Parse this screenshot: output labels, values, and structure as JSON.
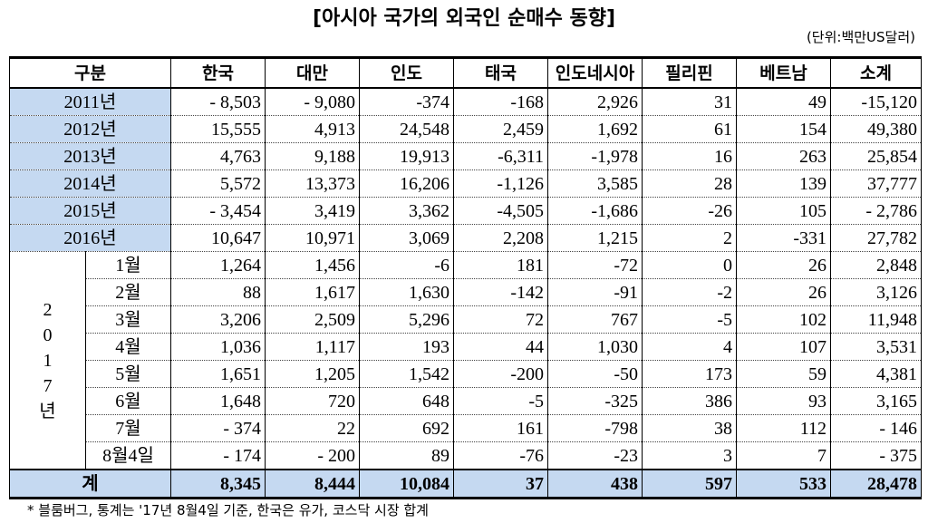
{
  "title": "[아시아 국가의 외국인 순매수 동향]",
  "unit": "(단위:백만US달러)",
  "headers": [
    "구분",
    "한국",
    "대만",
    "인도",
    "태국",
    "인도네시아",
    "필리핀",
    "베트남",
    "소계"
  ],
  "annual_rows": [
    {
      "label": "2011년",
      "values": [
        "- 8,503",
        "- 9,080",
        "-374",
        "-168",
        "2,926",
        "31",
        "49",
        "-15,120"
      ]
    },
    {
      "label": "2012년",
      "values": [
        "15,555",
        "4,913",
        "24,548",
        "2,459",
        "1,692",
        "61",
        "154",
        "49,380"
      ]
    },
    {
      "label": "2013년",
      "values": [
        "4,763",
        "9,188",
        "19,913",
        "-6,311",
        "-1,978",
        "16",
        "263",
        "25,854"
      ]
    },
    {
      "label": "2014년",
      "values": [
        "5,572",
        "13,373",
        "16,206",
        "-1,126",
        "3,585",
        "28",
        "139",
        "37,777"
      ]
    },
    {
      "label": "2015년",
      "values": [
        "- 3,454",
        "3,419",
        "3,362",
        "-4,505",
        "-1,686",
        "-26",
        "105",
        "- 2,786"
      ]
    },
    {
      "label": "2016년",
      "values": [
        "10,647",
        "10,971",
        "3,069",
        "2,208",
        "1,215",
        "2",
        "-331",
        "27,782"
      ]
    }
  ],
  "year_2017_chars": [
    "2",
    "0",
    "1",
    "7",
    "년"
  ],
  "monthly_rows": [
    {
      "label": "1월",
      "values": [
        "1,264",
        "1,456",
        "-6",
        "181",
        "-72",
        "0",
        "26",
        "2,848"
      ]
    },
    {
      "label": "2월",
      "values": [
        "88",
        "1,617",
        "1,630",
        "-142",
        "-91",
        "-2",
        "26",
        "3,126"
      ]
    },
    {
      "label": "3월",
      "values": [
        "3,206",
        "2,509",
        "5,296",
        "72",
        "767",
        "-5",
        "102",
        "11,948"
      ]
    },
    {
      "label": "4월",
      "values": [
        "1,036",
        "1,117",
        "193",
        "44",
        "1,030",
        "4",
        "107",
        "3,531"
      ]
    },
    {
      "label": "5월",
      "values": [
        "1,651",
        "1,205",
        "1,542",
        "-200",
        "-50",
        "173",
        "59",
        "4,381"
      ]
    },
    {
      "label": "6월",
      "values": [
        "1,648",
        "720",
        "648",
        "-5",
        "-325",
        "386",
        "93",
        "3,165"
      ]
    },
    {
      "label": "7월",
      "values": [
        "- 374",
        "22",
        "692",
        "161",
        "-798",
        "38",
        "112",
        "- 146"
      ]
    },
    {
      "label": "8월4일",
      "values": [
        "- 174",
        "- 200",
        "89",
        "-76",
        "-23",
        "3",
        "7",
        "- 375"
      ]
    }
  ],
  "total_row": {
    "label": "계",
    "values": [
      "8,345",
      "8,444",
      "10,084",
      "37",
      "438",
      "597",
      "533",
      "28,478"
    ]
  },
  "footnote": "* 블룸버그, 통계는 '17년 8월4일 기준, 한국은 유가, 코스닥 시장 합계",
  "colors": {
    "label_fill": "#c5d9f1"
  }
}
